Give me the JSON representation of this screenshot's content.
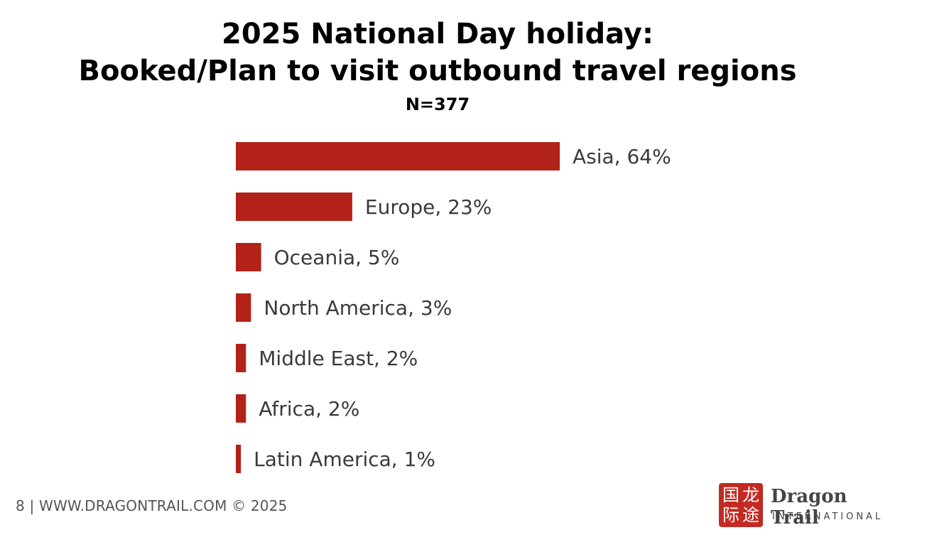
{
  "header": {
    "title_line1": "2025 National Day holiday:",
    "title_line2": "Booked/Plan to visit outbound travel regions",
    "sample_size": "N=377"
  },
  "chart_data": {
    "type": "bar",
    "orientation": "horizontal",
    "categories": [
      "Asia",
      "Europe",
      "Oceania",
      "North America",
      "Middle East",
      "Africa",
      "Latin America"
    ],
    "values": [
      64,
      23,
      5,
      3,
      2,
      2,
      1
    ],
    "labels": [
      "Asia, 64%",
      "Europe, 23%",
      "Oceania, 5%",
      "North America, 3%",
      "Middle East, 2%",
      "Africa, 2%",
      "Latin America, 1%"
    ],
    "unit": "%",
    "bar_color": "#b22218",
    "xlim": [
      0,
      64
    ],
    "grid": false,
    "legend": "none"
  },
  "footer": {
    "page_number": "8",
    "text": "8  |  WWW.DRAGONTRAIL.COM ©  2025"
  },
  "logo": {
    "name": "Dragon Trail",
    "subtitle": "INTERNATIONAL",
    "seal_chars": [
      "国",
      "龙",
      "际",
      "途"
    ],
    "seal_color": "#c22a22"
  }
}
